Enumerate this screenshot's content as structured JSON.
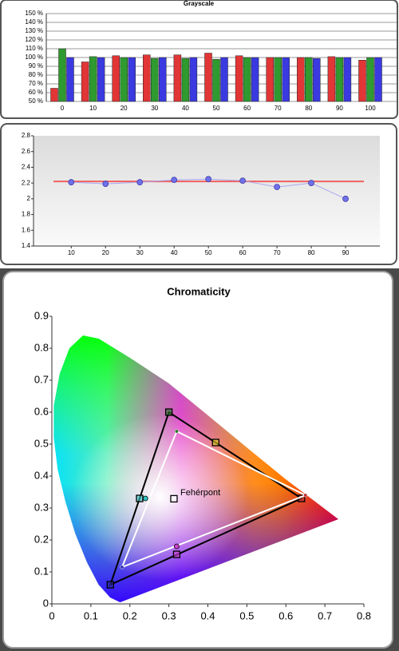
{
  "chart_data": [
    {
      "type": "bar",
      "title": "Grayscale",
      "categories": [
        "0",
        "10",
        "20",
        "30",
        "40",
        "50",
        "60",
        "70",
        "80",
        "90",
        "100"
      ],
      "series": [
        {
          "color": "#e23535",
          "values": [
            65,
            95,
            102,
            103,
            103,
            105,
            102,
            100,
            100,
            101,
            97
          ]
        },
        {
          "color": "#2f9a2f",
          "values": [
            110,
            101,
            100,
            99,
            99,
            98,
            100,
            100,
            100,
            100,
            100
          ]
        },
        {
          "color": "#3a3ae0",
          "values": [
            100,
            100,
            100,
            100,
            100,
            100,
            100,
            100,
            99,
            100,
            100
          ]
        }
      ],
      "ylim": [
        50,
        150
      ],
      "yticks": [
        {
          "value": 50,
          "label": "50 %"
        },
        {
          "value": 60,
          "label": "60 %"
        },
        {
          "value": 70,
          "label": "70 %"
        },
        {
          "value": 80,
          "label": "80 %"
        },
        {
          "value": 90,
          "label": "90 %"
        },
        {
          "value": 100,
          "label": "100 %"
        },
        {
          "value": 110,
          "label": "110 %"
        },
        {
          "value": 120,
          "label": "120 %"
        },
        {
          "value": 130,
          "label": "130 %"
        },
        {
          "value": 140,
          "label": "140 %"
        },
        {
          "value": 150,
          "label": "150 %"
        }
      ],
      "grid": true
    },
    {
      "type": "line",
      "x": [
        10,
        20,
        30,
        40,
        50,
        60,
        70,
        80,
        90
      ],
      "series": [
        {
          "color": "#7070e8",
          "values": [
            2.21,
            2.19,
            2.21,
            2.24,
            2.25,
            2.23,
            2.15,
            2.2,
            2.0
          ]
        }
      ],
      "reference": 2.22,
      "reference_color": "#f06060",
      "xlim": [
        -1,
        100
      ],
      "xticks": [
        10,
        20,
        30,
        40,
        50,
        60,
        70,
        80,
        90
      ],
      "ylim": [
        1.4,
        2.8
      ],
      "yticks": [
        1.4,
        1.6,
        1.8,
        2,
        2.2,
        2.4,
        2.6,
        2.8
      ],
      "grid": false
    },
    {
      "type": "scatter",
      "title": "Chromaticity",
      "annotation": "Fehérpont",
      "series": [
        {
          "marker": "square",
          "closed": true,
          "color": "#000000",
          "colors": [
            "#b03030",
            "#2a7a2a",
            "#2a2a9a"
          ],
          "x": [
            0.64,
            0.3,
            0.15
          ],
          "values": [
            0.33,
            0.6,
            0.06
          ]
        },
        {
          "marker": "dot",
          "closed": true,
          "color": "#ffffff",
          "colors": [
            "#c03030",
            "#2a7a2a",
            "#3030b0"
          ],
          "x": [
            0.65,
            0.32,
            0.18
          ],
          "values": [
            0.34,
            0.54,
            0.115
          ]
        },
        {
          "marker": "square",
          "closed": false,
          "color": "#000000",
          "colors": [
            "#e0d020",
            "#30c0c0",
            "#d040d0"
          ],
          "x": [
            0.42,
            0.225,
            0.32
          ],
          "values": [
            0.505,
            0.33,
            0.155
          ]
        },
        {
          "marker": "circle",
          "closed": false,
          "color": "#000000",
          "colors": [
            "#30c0c0",
            "#d040d0"
          ],
          "x": [
            0.24,
            0.32
          ],
          "values": [
            0.33,
            0.18
          ]
        },
        {
          "marker": "square",
          "closed": false,
          "color": "#000000",
          "colors": [
            "#ffffff"
          ],
          "x": [
            0.313
          ],
          "values": [
            0.329
          ]
        }
      ],
      "xlim": [
        0,
        0.8
      ],
      "xticks": [
        0,
        0.1,
        0.2,
        0.3,
        0.4,
        0.5,
        0.6,
        0.7,
        0.8
      ],
      "ylim": [
        0,
        0.9
      ],
      "yticks": [
        0,
        0.1,
        0.2,
        0.3,
        0.4,
        0.5,
        0.6,
        0.7,
        0.8,
        0.9
      ],
      "grid": false
    }
  ]
}
